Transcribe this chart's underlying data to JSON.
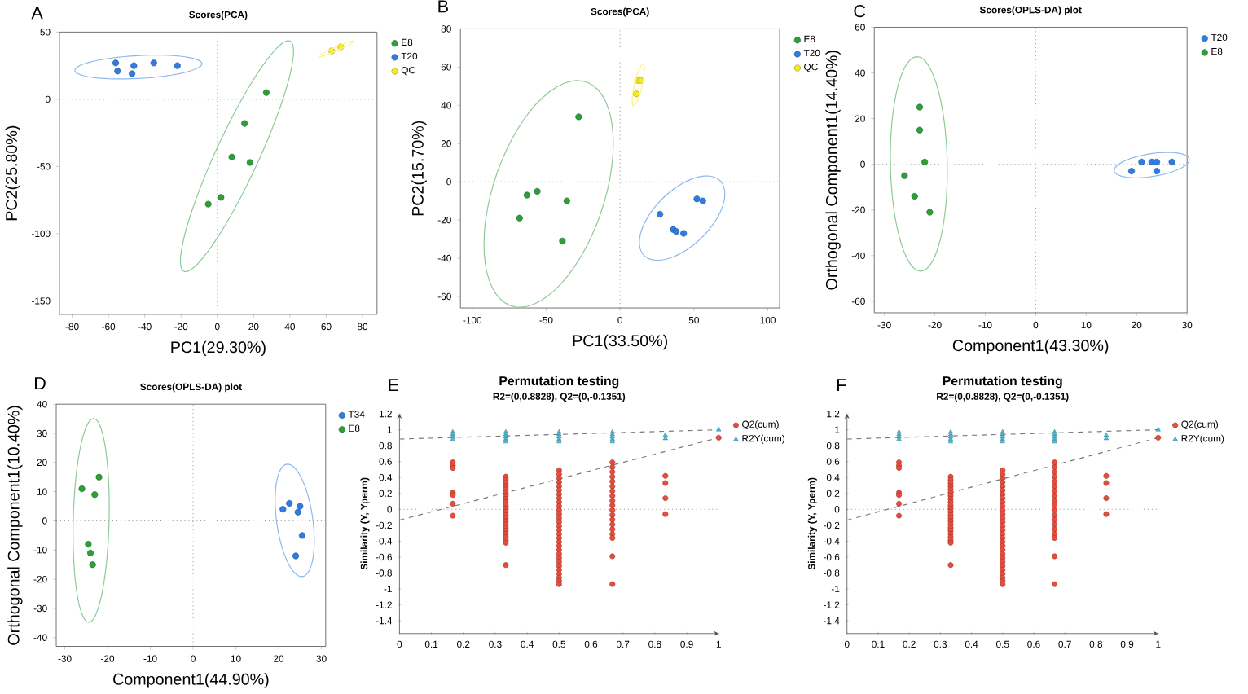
{
  "chart_data": [
    {
      "type": "scatter",
      "title": "Scores(PCA)",
      "xlabel": "PC1(29.30%)",
      "ylabel": "PC2(25.80%)",
      "annotations": [
        "A"
      ],
      "legend": "top right",
      "xlim": [
        -87,
        88
      ],
      "ylim": [
        -160,
        50
      ],
      "xticks": [
        -80,
        -60,
        -40,
        -20,
        0,
        20,
        40,
        60,
        80
      ],
      "yticks": [
        -150,
        -100,
        -50,
        0,
        50
      ],
      "ref_lines": [
        {
          "axis": "x",
          "value": 0,
          "line_style": "dotted",
          "color": "#8c8c8c"
        },
        {
          "axis": "y",
          "value": 0,
          "line_style": "dotted",
          "color": "#8c8c8c"
        }
      ],
      "series": [
        {
          "name": "E8",
          "color": "#2e9e3a",
          "marker": "circle",
          "x": [
            27,
            15,
            8,
            18,
            2,
            -5
          ],
          "values": [
            5,
            -18,
            -43,
            -47,
            -73,
            -78
          ]
        },
        {
          "name": "T20",
          "color": "#2f7de0",
          "marker": "circle",
          "x": [
            -56,
            -55,
            -46,
            -47,
            -35,
            -22
          ],
          "values": [
            27,
            21,
            25,
            19,
            27,
            25
          ]
        },
        {
          "name": "QC",
          "color": "#f5ea1e",
          "marker": "circle",
          "x": [
            63,
            68
          ],
          "values": [
            36,
            39
          ]
        }
      ]
    },
    {
      "type": "scatter",
      "title": "Scores(PCA)",
      "xlabel": "PC1(33.50%)",
      "ylabel": "PC2(15.70%)",
      "annotations": [
        "B"
      ],
      "legend": "top right",
      "xlim": [
        -108,
        108
      ],
      "ylim": [
        -66,
        80
      ],
      "xticks": [
        -100,
        -50,
        0,
        50,
        100
      ],
      "yticks": [
        -60,
        -40,
        -20,
        0,
        20,
        40,
        60,
        80
      ],
      "ref_lines": [
        {
          "axis": "x",
          "value": 0,
          "line_style": "dotted",
          "color": "#8c8c8c"
        },
        {
          "axis": "y",
          "value": 0,
          "line_style": "dotted",
          "color": "#8c8c8c"
        }
      ],
      "series": [
        {
          "name": "E8",
          "color": "#2e9e3a",
          "marker": "circle",
          "x": [
            -28,
            -56,
            -63,
            -36,
            -68,
            -39
          ],
          "values": [
            34,
            -5,
            -7,
            -10,
            -19,
            -31
          ]
        },
        {
          "name": "T20",
          "color": "#2f7de0",
          "marker": "circle",
          "x": [
            27,
            52,
            56,
            36,
            38,
            43
          ],
          "values": [
            -17,
            -9,
            -10,
            -25,
            -26,
            -27
          ]
        },
        {
          "name": "QC",
          "color": "#f5ea1e",
          "marker": "circle",
          "x": [
            12,
            14,
            11
          ],
          "values": [
            53,
            53,
            46
          ]
        }
      ]
    },
    {
      "type": "scatter",
      "title": "Scores(OPLS-DA) plot",
      "xlabel": "Component1(43.30%)",
      "ylabel": "Orthogonal Component1(14.40%)",
      "annotations": [
        "C"
      ],
      "legend": "top right",
      "xlim": [
        -32,
        30
      ],
      "ylim": [
        -65,
        60
      ],
      "xticks": [
        -30,
        -20,
        -10,
        0,
        10,
        20,
        30
      ],
      "yticks": [
        -60,
        -40,
        -20,
        0,
        20,
        40,
        60
      ],
      "ref_lines": [
        {
          "axis": "x",
          "value": 0,
          "line_style": "dotted",
          "color": "#8c8c8c"
        },
        {
          "axis": "y",
          "value": 0,
          "line_style": "dotted",
          "color": "#8c8c8c"
        }
      ],
      "series": [
        {
          "name": "T20",
          "color": "#2f7de0",
          "marker": "circle",
          "x": [
            21,
            23,
            24,
            27,
            19,
            24
          ],
          "values": [
            1,
            1,
            1,
            1,
            -3,
            -3
          ]
        },
        {
          "name": "E8",
          "color": "#2e9e3a",
          "marker": "circle",
          "x": [
            -23,
            -23,
            -22,
            -26,
            -24,
            -21
          ],
          "values": [
            25,
            15,
            1,
            -5,
            -14,
            -21
          ]
        }
      ]
    },
    {
      "type": "scatter",
      "title": "Scores(OPLS-DA) plot",
      "xlabel": "Component1(44.90%)",
      "ylabel": "Orthogonal Component1(10.40%)",
      "annotations": [
        "D"
      ],
      "legend": "top right",
      "xlim": [
        -32,
        31
      ],
      "ylim": [
        -43,
        40
      ],
      "xticks": [
        -30,
        -20,
        -10,
        0,
        10,
        20,
        30
      ],
      "yticks": [
        -40,
        -30,
        -20,
        -10,
        0,
        10,
        20,
        30,
        40
      ],
      "ref_lines": [
        {
          "axis": "x",
          "value": 0,
          "line_style": "dotted",
          "color": "#8c8c8c"
        },
        {
          "axis": "y",
          "value": 0,
          "line_style": "dotted",
          "color": "#8c8c8c"
        }
      ],
      "series": [
        {
          "name": "T34",
          "color": "#2f7de0",
          "marker": "circle",
          "x": [
            22.5,
            21,
            25,
            24.5,
            25.5,
            24
          ],
          "values": [
            6,
            4,
            5,
            3,
            -5,
            -12
          ]
        },
        {
          "name": "E8",
          "color": "#2e9e3a",
          "marker": "circle",
          "x": [
            -22,
            -26,
            -23,
            -24.5,
            -24,
            -23.5
          ],
          "values": [
            15,
            11,
            9,
            -8,
            -11,
            -15
          ]
        }
      ]
    },
    {
      "type": "scatter",
      "title": "Permutation testing",
      "subtitle": "R2=(0,0.8828), Q2=(0,-0.1351)",
      "ylabel": "Similarity (Y, Yperm)",
      "annotations": [
        "E"
      ],
      "legend": "top right",
      "xlim": [
        0,
        1
      ],
      "ylim": [
        -1.56,
        1.2
      ],
      "xticks": [
        0,
        0.1,
        0.2,
        0.3,
        0.4,
        0.5,
        0.6,
        0.7,
        0.8,
        0.9,
        1
      ],
      "yticks": [
        -1.4,
        -1.2,
        -1,
        -0.8,
        -0.6,
        -0.4,
        -0.2,
        0,
        0.2,
        0.4,
        0.6,
        0.8,
        1,
        1.2
      ],
      "ref_lines": [
        {
          "axis": "y",
          "value": 0,
          "line_style": "dotted",
          "color": "#8c8c8c"
        }
      ],
      "series": [
        {
          "type": "line",
          "color": "#7a7a7a",
          "marker": "none",
          "line_style": "dashed",
          "x": [
            0,
            1
          ],
          "values": [
            0.8828,
            1
          ]
        },
        {
          "type": "line",
          "color": "#7a7a7a",
          "marker": "none",
          "line_style": "dashed",
          "x": [
            0,
            1
          ],
          "values": [
            -0.1351,
            0.9
          ]
        },
        {
          "name": "Q2(cum)",
          "color": "#e84c3d",
          "marker": "circle",
          "x": [
            0.167,
            0.167,
            0.167,
            0.167,
            0.167,
            0.167,
            0.167,
            0.333,
            0.333,
            0.333,
            0.333,
            0.333,
            0.333,
            0.333,
            0.333,
            0.333,
            0.333,
            0.333,
            0.333,
            0.333,
            0.333,
            0.333,
            0.333,
            0.333,
            0.333,
            0.333,
            0.333,
            0.333,
            0.333,
            0.333,
            0.5,
            0.5,
            0.5,
            0.5,
            0.5,
            0.5,
            0.5,
            0.5,
            0.5,
            0.5,
            0.5,
            0.5,
            0.5,
            0.5,
            0.5,
            0.5,
            0.5,
            0.5,
            0.5,
            0.5,
            0.5,
            0.5,
            0.5,
            0.5,
            0.5,
            0.5,
            0.5,
            0.5,
            0.5,
            0.5,
            0.667,
            0.667,
            0.667,
            0.667,
            0.667,
            0.667,
            0.667,
            0.667,
            0.667,
            0.667,
            0.667,
            0.667,
            0.667,
            0.667,
            0.667,
            0.667,
            0.667,
            0.667,
            0.667,
            0.833,
            0.833,
            0.833,
            0.833,
            1
          ],
          "values": [
            0.59,
            0.55,
            0.52,
            0.21,
            0.18,
            0.07,
            -0.08,
            0.41,
            0.37,
            0.33,
            0.29,
            0.25,
            0.21,
            0.17,
            0.13,
            0.09,
            0.05,
            0.01,
            -0.03,
            -0.07,
            -0.11,
            -0.15,
            -0.19,
            -0.23,
            -0.27,
            -0.31,
            -0.35,
            -0.39,
            -0.42,
            -0.7,
            0.49,
            0.44,
            0.39,
            0.34,
            0.29,
            0.24,
            0.19,
            0.14,
            0.09,
            0.04,
            -0.01,
            -0.06,
            -0.11,
            -0.16,
            -0.21,
            -0.26,
            -0.31,
            -0.36,
            -0.41,
            -0.46,
            -0.51,
            -0.56,
            -0.61,
            -0.66,
            -0.71,
            -0.76,
            -0.81,
            -0.86,
            -0.9,
            -0.94,
            0.59,
            0.53,
            0.47,
            0.41,
            0.35,
            0.29,
            0.23,
            0.17,
            0.11,
            0.05,
            -0.01,
            -0.07,
            -0.13,
            -0.19,
            -0.25,
            -0.31,
            -0.36,
            -0.59,
            -0.94,
            0.42,
            0.33,
            0.14,
            -0.06,
            0.9
          ]
        },
        {
          "name": "R2Y(cum)",
          "color": "#4fc3dc",
          "marker": "triangle",
          "x": [
            0.167,
            0.167,
            0.167,
            0.167,
            0.333,
            0.333,
            0.333,
            0.333,
            0.333,
            0.5,
            0.5,
            0.5,
            0.5,
            0.5,
            0.667,
            0.667,
            0.667,
            0.667,
            0.667,
            0.833,
            0.833,
            1
          ],
          "values": [
            0.97,
            0.94,
            0.91,
            0.88,
            0.97,
            0.94,
            0.91,
            0.88,
            0.85,
            0.97,
            0.94,
            0.91,
            0.88,
            0.85,
            0.97,
            0.94,
            0.91,
            0.88,
            0.85,
            0.93,
            0.89,
            1
          ]
        }
      ]
    },
    {
      "type": "scatter",
      "title": "Permutation testing",
      "subtitle": "R2=(0,0.8828), Q2=(0,-0.1351)",
      "ylabel": "Similarity (Y, Yperm)",
      "annotations": [
        "F"
      ],
      "legend": "top right",
      "xlim": [
        0,
        1
      ],
      "ylim": [
        -1.56,
        1.2
      ],
      "xticks": [
        0,
        0.1,
        0.2,
        0.3,
        0.4,
        0.5,
        0.6,
        0.7,
        0.8,
        0.9,
        1
      ],
      "yticks": [
        -1.4,
        -1.2,
        -1,
        -0.8,
        -0.6,
        -0.4,
        -0.2,
        0,
        0.2,
        0.4,
        0.6,
        0.8,
        1,
        1.2
      ],
      "ref_lines": [
        {
          "axis": "y",
          "value": 0,
          "line_style": "dotted",
          "color": "#8c8c8c"
        }
      ],
      "series": [
        {
          "type": "line",
          "color": "#7a7a7a",
          "marker": "none",
          "line_style": "dashed",
          "x": [
            0,
            1
          ],
          "values": [
            0.8828,
            1
          ]
        },
        {
          "type": "line",
          "color": "#7a7a7a",
          "marker": "none",
          "line_style": "dashed",
          "x": [
            0,
            1
          ],
          "values": [
            -0.1351,
            0.9
          ]
        },
        {
          "name": "Q2(cum)",
          "color": "#e84c3d",
          "marker": "circle",
          "x": [
            0.167,
            0.167,
            0.167,
            0.167,
            0.167,
            0.167,
            0.167,
            0.333,
            0.333,
            0.333,
            0.333,
            0.333,
            0.333,
            0.333,
            0.333,
            0.333,
            0.333,
            0.333,
            0.333,
            0.333,
            0.333,
            0.333,
            0.333,
            0.333,
            0.333,
            0.333,
            0.333,
            0.333,
            0.333,
            0.333,
            0.5,
            0.5,
            0.5,
            0.5,
            0.5,
            0.5,
            0.5,
            0.5,
            0.5,
            0.5,
            0.5,
            0.5,
            0.5,
            0.5,
            0.5,
            0.5,
            0.5,
            0.5,
            0.5,
            0.5,
            0.5,
            0.5,
            0.5,
            0.5,
            0.5,
            0.5,
            0.5,
            0.5,
            0.5,
            0.5,
            0.667,
            0.667,
            0.667,
            0.667,
            0.667,
            0.667,
            0.667,
            0.667,
            0.667,
            0.667,
            0.667,
            0.667,
            0.667,
            0.667,
            0.667,
            0.667,
            0.667,
            0.667,
            0.667,
            0.833,
            0.833,
            0.833,
            0.833,
            1
          ],
          "values": [
            0.59,
            0.55,
            0.52,
            0.21,
            0.18,
            0.07,
            -0.08,
            0.41,
            0.37,
            0.33,
            0.29,
            0.25,
            0.21,
            0.17,
            0.13,
            0.09,
            0.05,
            0.01,
            -0.03,
            -0.07,
            -0.11,
            -0.15,
            -0.19,
            -0.23,
            -0.27,
            -0.31,
            -0.35,
            -0.39,
            -0.42,
            -0.7,
            0.49,
            0.44,
            0.39,
            0.34,
            0.29,
            0.24,
            0.19,
            0.14,
            0.09,
            0.04,
            -0.01,
            -0.06,
            -0.11,
            -0.16,
            -0.21,
            -0.26,
            -0.31,
            -0.36,
            -0.41,
            -0.46,
            -0.51,
            -0.56,
            -0.61,
            -0.66,
            -0.71,
            -0.76,
            -0.81,
            -0.86,
            -0.9,
            -0.94,
            0.59,
            0.53,
            0.47,
            0.41,
            0.35,
            0.29,
            0.23,
            0.17,
            0.11,
            0.05,
            -0.01,
            -0.07,
            -0.13,
            -0.19,
            -0.25,
            -0.31,
            -0.36,
            -0.59,
            -0.94,
            0.42,
            0.33,
            0.14,
            -0.06,
            0.9
          ]
        },
        {
          "name": "R2Y(cum)",
          "color": "#4fc3dc",
          "marker": "triangle",
          "x": [
            0.167,
            0.167,
            0.167,
            0.167,
            0.333,
            0.333,
            0.333,
            0.333,
            0.333,
            0.5,
            0.5,
            0.5,
            0.5,
            0.5,
            0.667,
            0.667,
            0.667,
            0.667,
            0.667,
            0.833,
            0.833,
            1
          ],
          "values": [
            0.97,
            0.94,
            0.91,
            0.88,
            0.97,
            0.94,
            0.91,
            0.88,
            0.85,
            0.97,
            0.94,
            0.91,
            0.88,
            0.85,
            0.97,
            0.94,
            0.91,
            0.88,
            0.85,
            0.93,
            0.89,
            1
          ]
        }
      ]
    }
  ]
}
